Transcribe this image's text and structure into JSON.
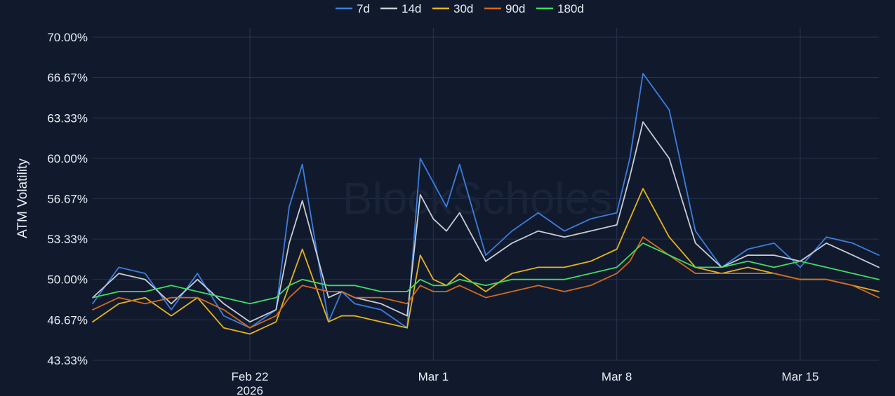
{
  "chart_data": {
    "type": "line",
    "ylabel": "ATM Volatility",
    "watermark": "BlockScholes",
    "y_ticks": [
      "43.33%",
      "46.67%",
      "50.00%",
      "53.33%",
      "56.67%",
      "60.00%",
      "63.33%",
      "66.67%",
      "70.00%"
    ],
    "ylim": [
      43.33,
      70.0
    ],
    "x_ticks": [
      {
        "date": "2026-02-22",
        "label": "Feb 22",
        "sublabel": "2026"
      },
      {
        "date": "2026-03-01",
        "label": "Mar 1",
        "sublabel": ""
      },
      {
        "date": "2026-03-08",
        "label": "Mar 8",
        "sublabel": ""
      },
      {
        "date": "2026-03-15",
        "label": "Mar 15",
        "sublabel": ""
      }
    ],
    "xlim": [
      "2026-02-16",
      "2026-03-18"
    ],
    "grid": true,
    "legend_position": "top",
    "series": [
      {
        "name": "7d",
        "color": "#3b7ddd",
        "x": [
          "2026-02-16",
          "2026-02-17",
          "2026-02-18",
          "2026-02-19",
          "2026-02-20",
          "2026-02-21",
          "2026-02-22",
          "2026-02-23",
          "2026-02-23T12",
          "2026-02-24",
          "2026-02-25",
          "2026-02-25T12",
          "2026-02-26",
          "2026-02-27",
          "2026-02-28",
          "2026-02-28T12",
          "2026-03-01",
          "2026-03-01T12",
          "2026-03-02",
          "2026-03-03",
          "2026-03-04",
          "2026-03-05",
          "2026-03-06",
          "2026-03-07",
          "2026-03-08",
          "2026-03-08T12",
          "2026-03-09",
          "2026-03-10",
          "2026-03-11",
          "2026-03-12",
          "2026-03-13",
          "2026-03-14",
          "2026-03-15",
          "2026-03-16",
          "2026-03-17",
          "2026-03-18"
        ],
        "values": [
          48.0,
          51.0,
          50.5,
          47.5,
          50.5,
          47.0,
          46.0,
          47.5,
          56.0,
          59.5,
          46.5,
          49.0,
          48.0,
          47.5,
          46.0,
          60.0,
          58.0,
          56.0,
          59.5,
          52.0,
          54.0,
          55.5,
          54.0,
          55.0,
          55.5,
          60.0,
          67.0,
          64.0,
          54.0,
          51.0,
          52.5,
          53.0,
          51.0,
          53.5,
          53.0,
          52.0
        ]
      },
      {
        "name": "14d",
        "color": "#c7ccd6",
        "x": [
          "2026-02-16",
          "2026-02-17",
          "2026-02-18",
          "2026-02-19",
          "2026-02-20",
          "2026-02-21",
          "2026-02-22",
          "2026-02-23",
          "2026-02-23T12",
          "2026-02-24",
          "2026-02-25",
          "2026-02-25T12",
          "2026-02-26",
          "2026-02-27",
          "2026-02-28",
          "2026-02-28T12",
          "2026-03-01",
          "2026-03-01T12",
          "2026-03-02",
          "2026-03-03",
          "2026-03-04",
          "2026-03-05",
          "2026-03-06",
          "2026-03-07",
          "2026-03-08",
          "2026-03-08T12",
          "2026-03-09",
          "2026-03-10",
          "2026-03-11",
          "2026-03-12",
          "2026-03-13",
          "2026-03-14",
          "2026-03-15",
          "2026-03-16",
          "2026-03-17",
          "2026-03-18"
        ],
        "values": [
          48.5,
          50.5,
          50.0,
          48.0,
          50.0,
          48.0,
          46.5,
          47.5,
          53.0,
          56.5,
          48.5,
          49.0,
          48.5,
          48.0,
          47.0,
          57.0,
          55.0,
          54.0,
          55.5,
          51.5,
          53.0,
          54.0,
          53.5,
          54.0,
          54.5,
          58.5,
          63.0,
          60.0,
          53.0,
          51.0,
          52.0,
          52.0,
          51.5,
          53.0,
          52.0,
          51.0
        ]
      },
      {
        "name": "30d",
        "color": "#e6b21a",
        "x": [
          "2026-02-16",
          "2026-02-17",
          "2026-02-18",
          "2026-02-19",
          "2026-02-20",
          "2026-02-21",
          "2026-02-22",
          "2026-02-23",
          "2026-02-23T12",
          "2026-02-24",
          "2026-02-25",
          "2026-02-25T12",
          "2026-02-26",
          "2026-02-27",
          "2026-02-28",
          "2026-02-28T12",
          "2026-03-01",
          "2026-03-01T12",
          "2026-03-02",
          "2026-03-03",
          "2026-03-04",
          "2026-03-05",
          "2026-03-06",
          "2026-03-07",
          "2026-03-08",
          "2026-03-08T12",
          "2026-03-09",
          "2026-03-10",
          "2026-03-11",
          "2026-03-12",
          "2026-03-13",
          "2026-03-14",
          "2026-03-15",
          "2026-03-16",
          "2026-03-17",
          "2026-03-18"
        ],
        "values": [
          46.5,
          48.0,
          48.5,
          47.0,
          48.5,
          46.0,
          45.5,
          46.5,
          49.5,
          52.5,
          46.5,
          47.0,
          47.0,
          46.5,
          46.0,
          52.0,
          50.0,
          49.5,
          50.5,
          49.0,
          50.5,
          51.0,
          51.0,
          51.5,
          52.5,
          55.0,
          57.5,
          53.5,
          51.0,
          50.5,
          51.0,
          50.5,
          50.0,
          50.0,
          49.5,
          49.0
        ]
      },
      {
        "name": "90d",
        "color": "#d2691e",
        "x": [
          "2026-02-16",
          "2026-02-17",
          "2026-02-18",
          "2026-02-19",
          "2026-02-20",
          "2026-02-21",
          "2026-02-22",
          "2026-02-23",
          "2026-02-23T12",
          "2026-02-24",
          "2026-02-25",
          "2026-02-25T12",
          "2026-02-26",
          "2026-02-27",
          "2026-02-28",
          "2026-02-28T12",
          "2026-03-01",
          "2026-03-01T12",
          "2026-03-02",
          "2026-03-03",
          "2026-03-04",
          "2026-03-05",
          "2026-03-06",
          "2026-03-07",
          "2026-03-08",
          "2026-03-08T12",
          "2026-03-09",
          "2026-03-10",
          "2026-03-11",
          "2026-03-12",
          "2026-03-13",
          "2026-03-14",
          "2026-03-15",
          "2026-03-16",
          "2026-03-17",
          "2026-03-18"
        ],
        "values": [
          47.5,
          48.5,
          48.0,
          48.5,
          48.5,
          47.5,
          46.0,
          47.0,
          48.5,
          49.5,
          49.0,
          49.0,
          48.5,
          48.5,
          48.0,
          49.5,
          49.0,
          49.0,
          49.5,
          48.5,
          49.0,
          49.5,
          49.0,
          49.5,
          50.5,
          51.5,
          53.5,
          52.0,
          50.5,
          50.5,
          50.5,
          50.5,
          50.0,
          50.0,
          49.5,
          48.5
        ]
      },
      {
        "name": "180d",
        "color": "#3ddc63",
        "x": [
          "2026-02-16",
          "2026-02-17",
          "2026-02-18",
          "2026-02-19",
          "2026-02-20",
          "2026-02-21",
          "2026-02-22",
          "2026-02-23",
          "2026-02-23T12",
          "2026-02-24",
          "2026-02-25",
          "2026-02-25T12",
          "2026-02-26",
          "2026-02-27",
          "2026-02-28",
          "2026-02-28T12",
          "2026-03-01",
          "2026-03-01T12",
          "2026-03-02",
          "2026-03-03",
          "2026-03-04",
          "2026-03-05",
          "2026-03-06",
          "2026-03-07",
          "2026-03-08",
          "2026-03-08T12",
          "2026-03-09",
          "2026-03-10",
          "2026-03-11",
          "2026-03-12",
          "2026-03-13",
          "2026-03-14",
          "2026-03-15",
          "2026-03-16",
          "2026-03-17",
          "2026-03-18"
        ],
        "values": [
          48.5,
          49.0,
          49.0,
          49.5,
          49.0,
          48.5,
          48.0,
          48.5,
          49.5,
          50.0,
          49.5,
          49.5,
          49.5,
          49.0,
          49.0,
          50.0,
          49.5,
          49.5,
          50.0,
          49.5,
          50.0,
          50.0,
          50.0,
          50.5,
          51.0,
          52.0,
          53.0,
          52.0,
          51.0,
          51.0,
          51.5,
          51.0,
          51.5,
          51.0,
          50.5,
          50.0
        ]
      }
    ]
  }
}
